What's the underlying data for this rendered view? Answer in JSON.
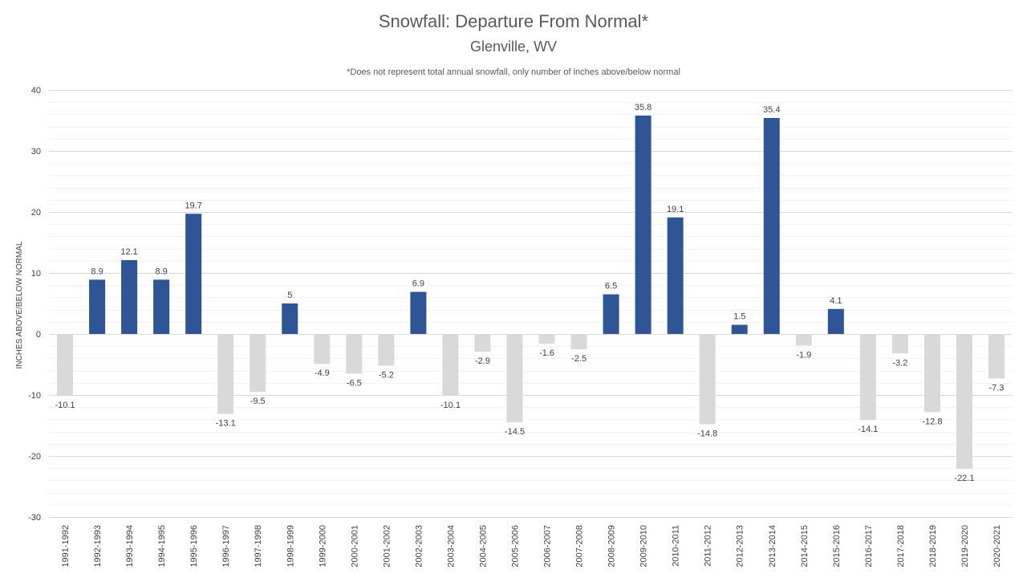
{
  "chart_data": {
    "type": "bar",
    "title": "Snowfall: Departure From Normal*",
    "subtitle": "Glenville, WV",
    "note": "*Does not represent  total annual snowfall, only number of inches above/below  normal",
    "xlabel": "",
    "ylabel": "INCHES ABOVE/BELOW NORMAL",
    "ylim": [
      -30,
      40
    ],
    "y_major_ticks": [
      -30,
      -20,
      -10,
      0,
      10,
      20,
      30,
      40
    ],
    "y_tick_labels": [
      "-30",
      "-20",
      "-10",
      "0",
      "10",
      "20",
      "30",
      "40"
    ],
    "y_minor_step": 2,
    "grid": true,
    "legend": "none",
    "colors": {
      "positive": "#2F5597",
      "negative": "#D9D9D9",
      "major_grid": "#D9D9D9",
      "minor_grid": "#F2F2F2"
    },
    "categories": [
      "1991-1992",
      "1992-1993",
      "1993-1994",
      "1994-1995",
      "1995-1996",
      "1996-1997",
      "1997-1998",
      "1998-1999",
      "1999-2000",
      "2000-2001",
      "2001-2002",
      "2002-2003",
      "2003-2004",
      "2004-2005",
      "2005-2006",
      "2006-2007",
      "2007-2008",
      "2008-2009",
      "2009-2010",
      "2010-2011",
      "2011-2012",
      "2012-2013",
      "2013-2014",
      "2014-2015",
      "2015-2016",
      "2016-2017",
      "2017-2018",
      "2018-2019",
      "2019-2020",
      "2020-2021"
    ],
    "values": [
      -10.1,
      8.9,
      12.1,
      8.9,
      19.7,
      -13.1,
      -9.5,
      5,
      -4.9,
      -6.5,
      -5.2,
      6.9,
      -10.1,
      -2.9,
      -14.5,
      -1.6,
      -2.5,
      6.5,
      35.8,
      19.1,
      -14.8,
      1.5,
      35.4,
      -1.9,
      4.1,
      -14.1,
      -3.2,
      -12.8,
      -22.1,
      -7.3
    ],
    "data_labels": [
      "-10.1",
      "8.9",
      "12.1",
      "8.9",
      "19.7",
      "-13.1",
      "-9.5",
      "5",
      "-4.9",
      "-6.5",
      "-5.2",
      "6.9",
      "-10.1",
      "-2.9",
      "-14.5",
      "-1.6",
      "-2.5",
      "6.5",
      "35.8",
      "19.1",
      "-14.8",
      "1.5",
      "35.4",
      "-1.9",
      "4.1",
      "-14.1",
      "-3.2",
      "-12.8",
      "-22.1",
      "-7.3"
    ]
  }
}
